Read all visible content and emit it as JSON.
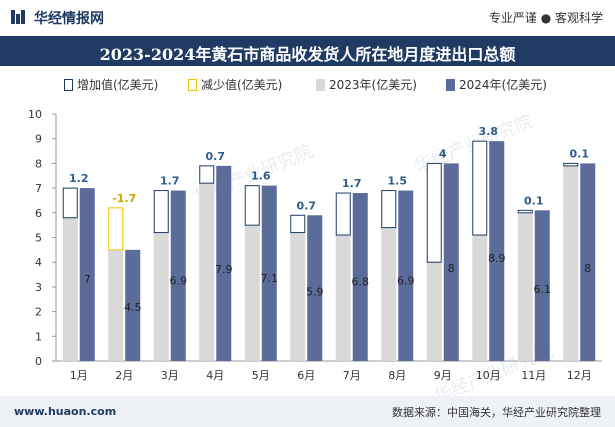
{
  "header": {
    "logo_text": "华经情报网",
    "slogan": "专业严谨 ● 客观科学"
  },
  "watermark": "华经产业研究院",
  "colors": {
    "brand": "#1f3a63",
    "increase_border": "#1f3a63",
    "decrease_border": "#f2c200",
    "year2023": "#d9d9d9",
    "year2024": "#5b6b9a",
    "label_up": "#2e5c8a",
    "label_down": "#c9a500"
  },
  "footer": {
    "site": "www.huaon.com",
    "source": "数据来源：中国海关，华经产业研究院整理"
  },
  "chart_data": {
    "type": "bar",
    "title": "2023-2024年黄石市商品收发货人所在地月度进出口总额",
    "xlabel": "",
    "ylabel": "",
    "ylim": [
      0,
      10
    ],
    "yticks": [
      0,
      1,
      2,
      3,
      4,
      5,
      6,
      7,
      8,
      9,
      10
    ],
    "categories": [
      "1月",
      "2月",
      "3月",
      "4月",
      "5月",
      "6月",
      "7月",
      "8月",
      "9月",
      "10月",
      "11月",
      "12月"
    ],
    "legend": [
      "增加值(亿美元)",
      "减少值(亿美元)",
      "2023年(亿美元)",
      "2024年(亿美元)"
    ],
    "legend_position": "top",
    "grid": false,
    "series": [
      {
        "name": "2023年(亿美元)",
        "values": [
          5.8,
          6.2,
          5.2,
          7.2,
          5.5,
          5.2,
          5.1,
          5.4,
          4.0,
          5.1,
          6.0,
          7.9
        ]
      },
      {
        "name": "2024年(亿美元)",
        "values": [
          7,
          4.5,
          6.9,
          7.9,
          7.1,
          5.9,
          6.8,
          6.9,
          8,
          8.9,
          6.1,
          8
        ]
      }
    ],
    "change_labels": [
      "1.2",
      "-1.7",
      "1.7",
      "0.7",
      "1.6",
      "0.7",
      "1.7",
      "1.5",
      "4",
      "3.8",
      "0.1",
      "0.1"
    ],
    "value_labels_2024": [
      "7",
      "4.5",
      "6.9",
      "7.9",
      "7.1",
      "5.9",
      "6.8",
      "6.9",
      "8",
      "8.9",
      "6.1",
      "8"
    ]
  }
}
